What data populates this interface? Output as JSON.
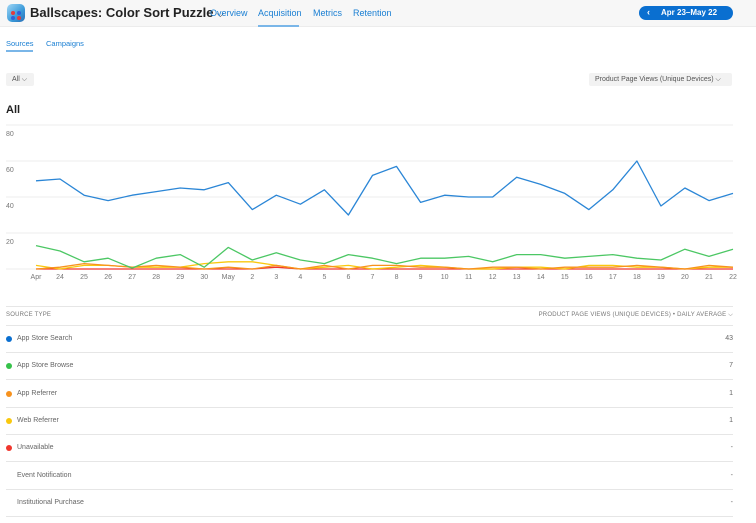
{
  "header": {
    "app_name": "Ballscapes: Color Sort Puzzle",
    "app_icon": "app-icon-ballscapes",
    "chevron_icon": "chevron-down-icon",
    "nav": [
      {
        "label": "Overview",
        "active": false
      },
      {
        "label": "Acquisition",
        "active": true
      },
      {
        "label": "Metrics",
        "active": false
      },
      {
        "label": "Retention",
        "active": false
      }
    ],
    "date_range": "Apr 23–May 22",
    "date_prev_icon": "chevron-left-icon"
  },
  "subtabs": [
    {
      "label": "Sources",
      "active": true
    },
    {
      "label": "Campaigns",
      "active": false
    }
  ],
  "filters": {
    "territory": "All ⌵",
    "metric": "Product Page Views (Unique Devices) ⌵"
  },
  "section_title": "All",
  "chart_data": {
    "type": "line",
    "title": "All",
    "xlabel": "",
    "ylabel": "Product Page Views (Unique Devices)",
    "ylim": [
      0,
      80
    ],
    "yticks": [
      20,
      40,
      60,
      80
    ],
    "grid": true,
    "x": [
      "Apr",
      "24",
      "25",
      "26",
      "27",
      "28",
      "29",
      "30",
      "May",
      "2",
      "3",
      "4",
      "5",
      "6",
      "7",
      "8",
      "9",
      "10",
      "11",
      "12",
      "13",
      "14",
      "15",
      "16",
      "17",
      "18",
      "19",
      "20",
      "21",
      "22"
    ],
    "series": [
      {
        "name": "App Store Search",
        "color": "#2b86d6",
        "values": [
          49,
          50,
          41,
          38,
          41,
          43,
          45,
          44,
          48,
          33,
          41,
          36,
          44,
          30,
          52,
          57,
          37,
          41,
          40,
          40,
          51,
          47,
          42,
          33,
          44,
          60,
          35,
          45,
          38,
          42
        ]
      },
      {
        "name": "App Store Browse",
        "color": "#4cc764",
        "values": [
          13,
          10,
          4,
          6,
          0.5,
          6,
          8,
          1,
          12,
          5,
          9,
          5,
          3,
          8,
          6,
          3,
          6,
          6,
          7,
          4,
          8,
          8,
          6,
          7,
          8,
          6,
          5,
          11,
          7,
          11
        ]
      },
      {
        "name": "App Referrer",
        "color": "#f7921e",
        "values": [
          0,
          1,
          3,
          2,
          1,
          2,
          1,
          0,
          1,
          0,
          2,
          0,
          2,
          0,
          2,
          2,
          1,
          1,
          0,
          1,
          1,
          0,
          1,
          1,
          1,
          2,
          1,
          0,
          2,
          1
        ]
      },
      {
        "name": "Web Referrer",
        "color": "#f9c80e",
        "values": [
          2,
          0,
          2,
          2,
          1,
          1,
          1,
          3,
          4,
          4,
          2,
          0,
          1,
          2,
          0,
          1,
          2,
          1,
          0,
          0,
          1,
          1,
          0,
          2,
          2,
          1,
          1,
          0,
          1,
          1
        ]
      },
      {
        "name": "Unavailable",
        "color": "#f0362d",
        "values": [
          0,
          0,
          0,
          0,
          0,
          0,
          0,
          0,
          0,
          0,
          1,
          0,
          0,
          0,
          0,
          0,
          0,
          0,
          0,
          0,
          0,
          0,
          0,
          0,
          0,
          0,
          0,
          0,
          0,
          0
        ]
      }
    ]
  },
  "table": {
    "col_source": "SOURCE TYPE",
    "col_metric": "PRODUCT PAGE VIEWS (UNIQUE DEVICES) • DAILY AVERAGE ⌵",
    "rows": [
      {
        "label": "App Store Search",
        "value": "43",
        "color": "#0a6fd0"
      },
      {
        "label": "App Store Browse",
        "value": "7",
        "color": "#36c24a"
      },
      {
        "label": "App Referrer",
        "value": "1",
        "color": "#f7921e"
      },
      {
        "label": "Web Referrer",
        "value": "1",
        "color": "#f9c80e"
      },
      {
        "label": "Unavailable",
        "value": "-",
        "color": "#f0362d"
      },
      {
        "label": "Event Notification",
        "value": "-",
        "color": ""
      },
      {
        "label": "Institutional Purchase",
        "value": "-",
        "color": ""
      }
    ]
  }
}
